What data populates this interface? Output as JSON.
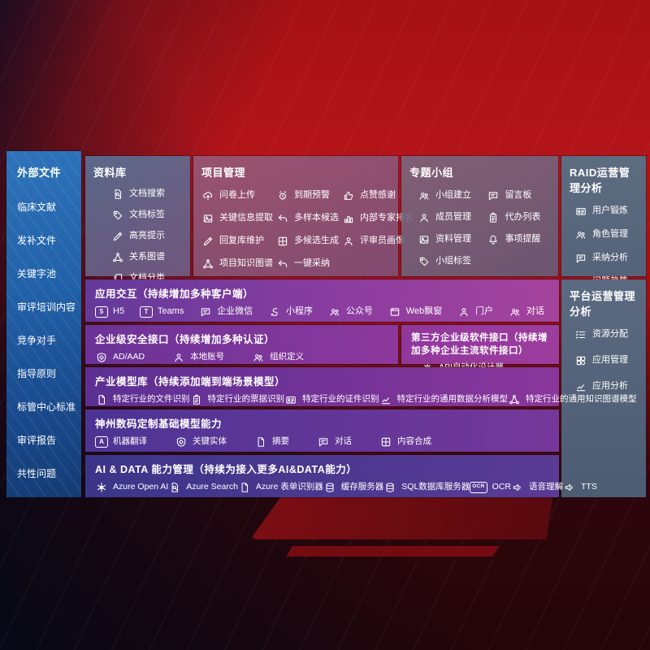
{
  "colors": {
    "background_red": "#b31419",
    "sidebar_blue": "#2e73ba",
    "panel_slate": "#5b6a80",
    "band_purple": "#8c3da0",
    "band_indigo": "#3b3589",
    "text": "#ffffff"
  },
  "sidebar": {
    "title": "外部文件",
    "items": [
      {
        "label": "临床文献"
      },
      {
        "label": "发补文件"
      },
      {
        "label": "关键字池"
      },
      {
        "label": "审评培训内容"
      },
      {
        "label": "竞争对手"
      },
      {
        "label": "指导原则"
      },
      {
        "label": "标管中心标准"
      },
      {
        "label": "审评报告"
      },
      {
        "label": "共性问题"
      }
    ]
  },
  "panels": {
    "repo": {
      "title": "资料库",
      "items": [
        {
          "icon": "searchdoc",
          "label": "文档搜索"
        },
        {
          "icon": "tag",
          "label": "文档标签"
        },
        {
          "icon": "pen",
          "label": "高亮提示"
        },
        {
          "icon": "network",
          "label": "关系图谱"
        },
        {
          "icon": "copy",
          "label": "文档分类"
        }
      ]
    },
    "project": {
      "title": "项目管理",
      "items": [
        {
          "icon": "cloud",
          "label": "问卷上传"
        },
        {
          "icon": "alarm",
          "label": "到期预警"
        },
        {
          "icon": "thumb",
          "label": "点赞感谢"
        },
        {
          "icon": "image",
          "label": "关键信息提取"
        },
        {
          "icon": "undo",
          "label": "多样本候选"
        },
        {
          "icon": "rank",
          "label": "内部专家排名"
        },
        {
          "icon": "pen",
          "label": "回复库维护"
        },
        {
          "icon": "puzzle",
          "label": "多候选生成"
        },
        {
          "icon": "person",
          "label": "评审员画像"
        },
        {
          "icon": "network",
          "label": "项目知识图谱"
        },
        {
          "icon": "undo",
          "label": "一键采纳"
        }
      ]
    },
    "topic": {
      "title": "专题小组",
      "items": [
        {
          "icon": "people",
          "label": "小组建立"
        },
        {
          "icon": "chat",
          "label": "留言板"
        },
        {
          "icon": "person",
          "label": "成员管理"
        },
        {
          "icon": "clipboard",
          "label": "代办列表"
        },
        {
          "icon": "image",
          "label": "资料管理"
        },
        {
          "icon": "bell",
          "label": "事项提醒"
        },
        {
          "icon": "tag",
          "label": "小组标签"
        }
      ]
    },
    "raid": {
      "title": "RAID运营管理分析",
      "items": [
        {
          "icon": "idcard",
          "label": "用户锻炼"
        },
        {
          "icon": "people",
          "label": "角色管理"
        },
        {
          "icon": "chat",
          "label": "采纳分析"
        },
        {
          "icon": "chart",
          "label": "问题趋势"
        }
      ]
    },
    "platform": {
      "title": "平台运营管理分析",
      "items": [
        {
          "icon": "list",
          "label": "资源分配"
        },
        {
          "icon": "grid",
          "label": "应用管理"
        },
        {
          "icon": "chart",
          "label": "应用分析"
        }
      ]
    }
  },
  "bands": {
    "interact": {
      "title": "应用交互（持续增加多种客户端）",
      "items": [
        {
          "icon": "h5",
          "label": "H5"
        },
        {
          "icon": "teams",
          "label": "Teams"
        },
        {
          "icon": "chat",
          "label": "企业微信"
        },
        {
          "icon": "scurve",
          "label": "小程序"
        },
        {
          "icon": "people",
          "label": "公众号"
        },
        {
          "icon": "window",
          "label": "Web飘窗"
        },
        {
          "icon": "person",
          "label": "门户"
        },
        {
          "icon": "people",
          "label": "对话"
        }
      ]
    },
    "security": {
      "title": "企业级安全接口（持续增加多种认证）",
      "items": [
        {
          "icon": "shield",
          "label": "AD/AAD"
        },
        {
          "icon": "person",
          "label": "本地账号"
        },
        {
          "icon": "people",
          "label": "组织定义"
        }
      ]
    },
    "thirdparty": {
      "title": "第三方企业级软件接口（持续增加多种企业主流软件接口）",
      "items": [
        {
          "icon": "gear",
          "label": "API自动化设计器"
        }
      ]
    },
    "industry": {
      "title": "产业模型库（持续添加端到端场景模型）",
      "items": [
        {
          "icon": "doc",
          "label": "特定行业的文件识别"
        },
        {
          "icon": "clipboard",
          "label": "特定行业的票据识别"
        },
        {
          "icon": "idcard",
          "label": "特定行业的证件识别"
        },
        {
          "icon": "chart",
          "label": "特定行业的通用数据分析模型"
        },
        {
          "icon": "network",
          "label": "特定行业的通用知识图谱模型"
        }
      ]
    },
    "model": {
      "title": "神州数码定制基础模型能力",
      "items": [
        {
          "icon": "translate",
          "label": "机器翻译"
        },
        {
          "icon": "shield",
          "label": "关键实体"
        },
        {
          "icon": "doc",
          "label": "摘要"
        },
        {
          "icon": "chat",
          "label": "对话"
        },
        {
          "icon": "puzzle",
          "label": "内容合成"
        }
      ]
    },
    "aidata": {
      "title": "AI & DATA 能力管理（持续为接入更多AI&DATA能力）",
      "items": [
        {
          "icon": "flower",
          "label": "Azure Open AI"
        },
        {
          "icon": "searchdoc",
          "label": "Azure Search"
        },
        {
          "icon": "doc",
          "label": "Azure 表单识别器"
        },
        {
          "icon": "db",
          "label": "缓存服务器"
        },
        {
          "icon": "db",
          "label": "SQL数据库服务器"
        },
        {
          "icon": "ocr",
          "label": "OCR"
        },
        {
          "icon": "sound",
          "label": "语音理解"
        },
        {
          "icon": "sound",
          "label": "TTS"
        }
      ]
    }
  }
}
